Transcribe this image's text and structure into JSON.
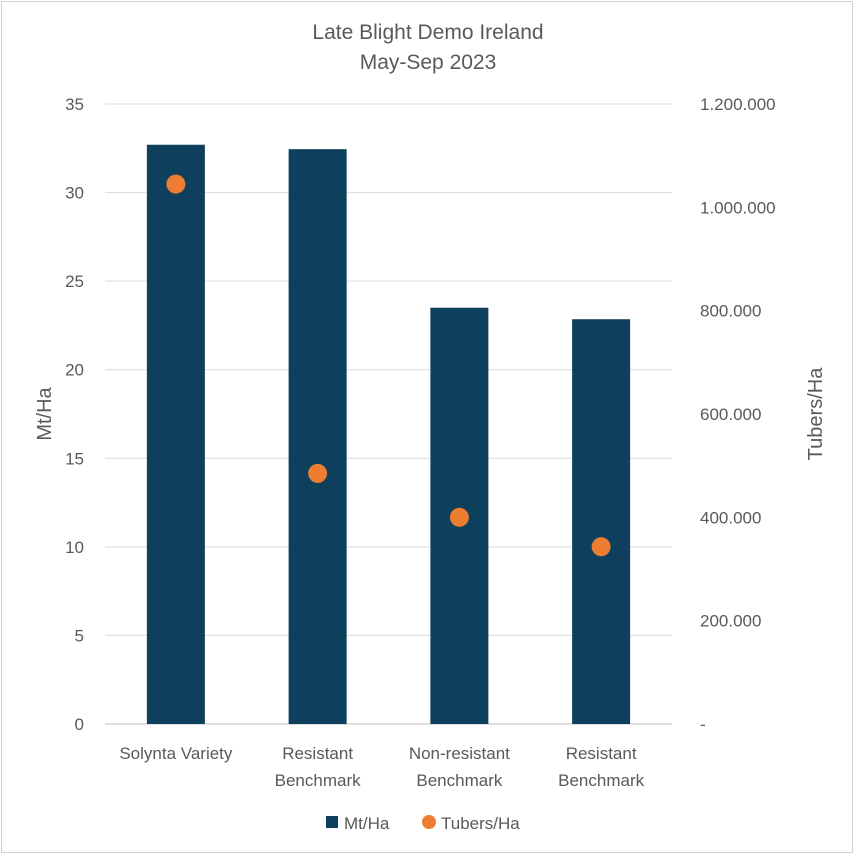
{
  "chart_data": {
    "type": "bar",
    "title": [
      "Late Blight Demo Ireland",
      "May-Sep 2023"
    ],
    "categories": [
      [
        "Solynta Variety"
      ],
      [
        "Resistant",
        "Benchmark"
      ],
      [
        "Non-resistant",
        "Benchmark"
      ],
      [
        "Resistant",
        "Benchmark"
      ]
    ],
    "series": [
      {
        "name": "Mt/Ha",
        "kind": "bar",
        "axis": "left",
        "color": "#0e3f5c",
        "values": [
          32.7,
          32.45,
          23.5,
          22.85
        ]
      },
      {
        "name": "Tubers/Ha",
        "kind": "scatter",
        "axis": "right",
        "color": "#ed7d31",
        "values": [
          1045000,
          485000,
          400000,
          343000
        ]
      }
    ],
    "ylabel": "Mt/Ha",
    "y2label": "Tubers/Ha",
    "ylim": [
      0,
      35
    ],
    "y2lim": [
      0,
      1200000
    ],
    "yticks": [
      "0",
      "5",
      "10",
      "15",
      "20",
      "25",
      "30",
      "35"
    ],
    "y2ticks": [
      "-",
      "200.000",
      "400.000",
      "600.000",
      "800.000",
      "1.000.000",
      "1.200.000"
    ],
    "grid": true,
    "legend": "bottom-center",
    "legend_entries": [
      "Mt/Ha",
      "Tubers/Ha"
    ]
  }
}
